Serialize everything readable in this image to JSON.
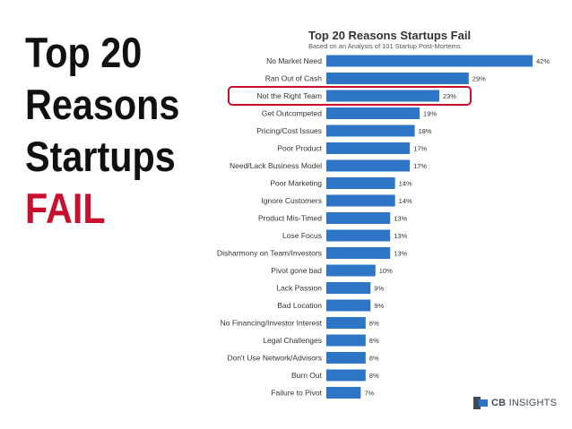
{
  "headline": {
    "line1": "Top 20",
    "line2": "Reasons",
    "line3": "Startups",
    "line4": "FAIL"
  },
  "colors": {
    "bar": "#2e75c6",
    "highlight": "#c8102e",
    "headline_fail": "#c8102e"
  },
  "highlighted_category": "Not the Right Team",
  "logo": {
    "brand": "CB",
    "suffix": "INSIGHTS"
  },
  "chart_data": {
    "type": "bar",
    "orientation": "horizontal",
    "title": "Top 20 Reasons Startups Fail",
    "subtitle": "Based on an Analysis of 101 Startup Post-Mortems",
    "xlabel": "",
    "ylabel": "",
    "xlim": [
      0,
      45
    ],
    "grid": false,
    "categories": [
      "No Market Need",
      "Ran Out of Cash",
      "Not the Right Team",
      "Get Outcompeted",
      "Pricing/Cost Issues",
      "Poor Product",
      "Need/Lack Business Model",
      "Poor Marketing",
      "Ignore Customers",
      "Product Mis-Timed",
      "Lose Focus",
      "Disharmony on Team/Investors",
      "Pivot gone bad",
      "Lack Passion",
      "Bad Location",
      "No Financing/Investor Interest",
      "Legal Challenges",
      "Don't Use Network/Advisors",
      "Burn Out",
      "Failure to Pivot"
    ],
    "values": [
      42,
      29,
      23,
      19,
      18,
      17,
      17,
      14,
      14,
      13,
      13,
      13,
      10,
      9,
      9,
      8,
      8,
      8,
      8,
      7
    ],
    "value_labels": [
      "42%",
      "29%",
      "23%",
      "19%",
      "18%",
      "17%",
      "17%",
      "14%",
      "14%",
      "13%",
      "13%",
      "13%",
      "10%",
      "9%",
      "9%",
      "8%",
      "8%",
      "8%",
      "8%",
      "7%"
    ]
  }
}
